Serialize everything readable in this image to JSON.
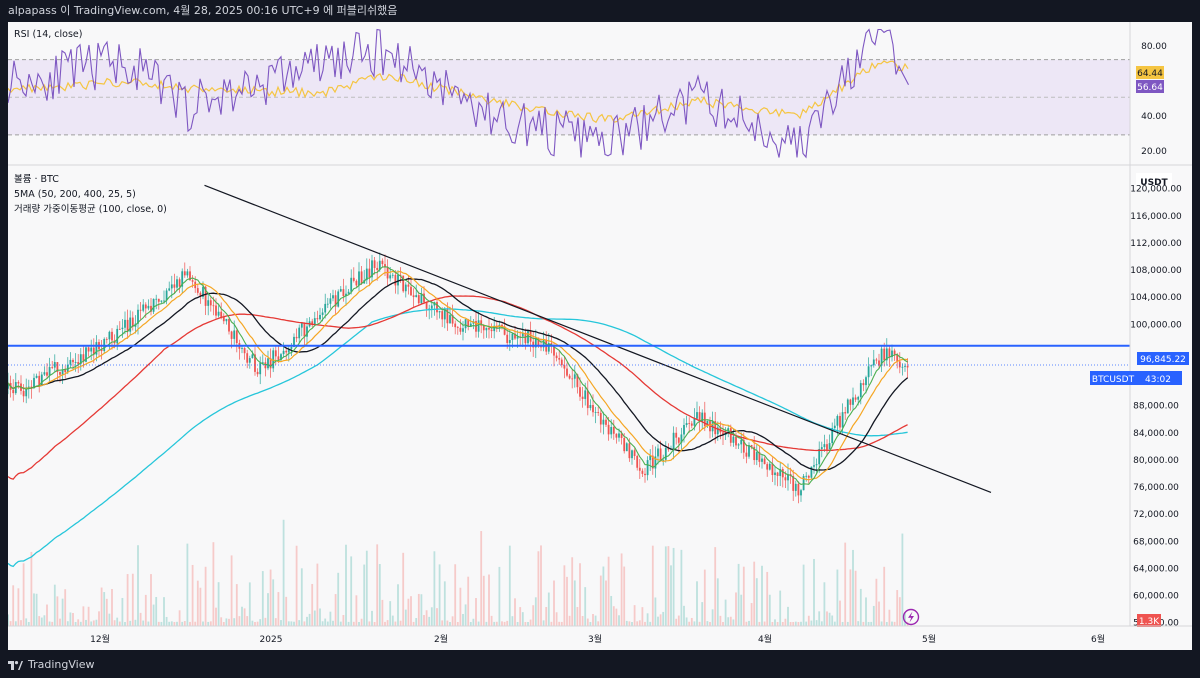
{
  "header": {
    "text": "alpapass 이 TradingView.com, 4월 28, 2025 00:16 UTC+9 에 퍼블리쉬했음"
  },
  "footer": {
    "brand": "TradingView"
  },
  "rsi_pane": {
    "title": "RSI (14, close)",
    "axis_ticks": [
      "80.00",
      "40.00",
      "20.00"
    ],
    "value_rsi": "56.64",
    "value_ma": "64.44",
    "upper_band": 70,
    "mid_band": 50,
    "lower_band": 30
  },
  "price_pane": {
    "legend": [
      "볼륨 · BTC",
      "5MA (50, 200, 400, 25, 5)",
      "거래량 가중이동평균 (100, close, 0)"
    ],
    "currency": "USDT",
    "axis_ticks": [
      "120,000.00",
      "116,000.00",
      "112,000.00",
      "108,000.00",
      "104,000.00",
      "100,000.00",
      "92,000.00",
      "88,000.00",
      "84,000.00",
      "80,000.00",
      "76,000.00",
      "72,000.00",
      "68,000.00",
      "64,000.00",
      "60,000.00",
      "56,000.00"
    ],
    "resistance_label": "96,845.22",
    "resistance_value": 96845.22,
    "symbol_label": "BTCUSDT",
    "countdown": "43:02",
    "last_price": 94000,
    "volume_label": "1.3K",
    "x_labels": [
      "12월",
      "2025",
      "2월",
      "3월",
      "4월",
      "5월",
      "6월"
    ]
  },
  "colors": {
    "background": "#f8f8f9",
    "rsi_line": "#7e57c2",
    "rsi_ma": "#f5c542",
    "rsi_band_fill": "#ede7f6",
    "up": "#26a69a",
    "down": "#ef5350",
    "ma_black": "#131722",
    "ma_teal": "#26c6da",
    "ma_red": "#e53935",
    "ma_orange": "#f5a623",
    "ma_green": "#4caf50",
    "resistance": "#2962ff",
    "trendline": "#131722"
  },
  "chart_data": [
    {
      "type": "line",
      "title": "RSI (14, close)",
      "ylim": [
        14,
        90
      ],
      "x": [
        "2024-11-20",
        "2024-12-05",
        "2024-12-17",
        "2025-01-10",
        "2025-01-22",
        "2025-02-10",
        "2025-03-03",
        "2025-03-20",
        "2025-04-07",
        "2025-04-22",
        "2025-04-27"
      ],
      "series": [
        {
          "name": "RSI",
          "values": [
            60,
            70,
            45,
            68,
            75,
            40,
            25,
            50,
            23,
            85,
            56.64
          ]
        },
        {
          "name": "RSI MA",
          "values": [
            55,
            58,
            55,
            52,
            62,
            48,
            38,
            48,
            40,
            70,
            64.44
          ]
        }
      ]
    },
    {
      "type": "line",
      "title": "BTCUSDT",
      "ylim": [
        55500,
        123500
      ],
      "x": [
        "2024-11-17",
        "2024-12-05",
        "2024-12-17",
        "2024-12-30",
        "2025-01-20",
        "2025-02-03",
        "2025-02-21",
        "2025-03-02",
        "2025-03-10",
        "2025-03-20",
        "2025-04-07",
        "2025-04-22",
        "2025-04-27"
      ],
      "series": [
        {
          "name": "Price",
          "values": [
            90500,
            99000,
            107500,
            93000,
            109000,
            100500,
            97000,
            86000,
            78500,
            86500,
            76000,
            95500,
            94000
          ]
        }
      ]
    }
  ]
}
